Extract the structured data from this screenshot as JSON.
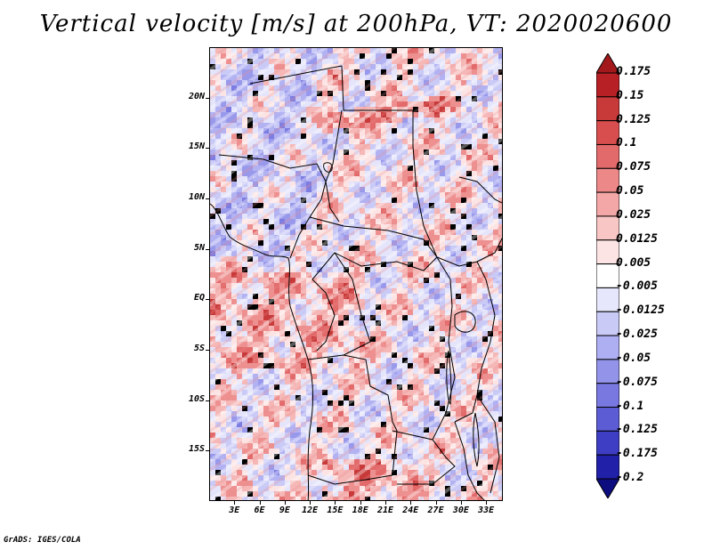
{
  "title": "Vertical velocity [m/s] at 200hPa, VT: 2020020600",
  "footer": "GrADS: IGES/COLA",
  "chart_data": {
    "type": "heatmap",
    "title": "Vertical velocity [m/s] at 200hPa, VT: 2020020600",
    "variable": "Vertical velocity",
    "units": "m/s",
    "level": "200hPa",
    "valid_time": "2020020600",
    "lat_range": [
      -20,
      25
    ],
    "lon_range": [
      0,
      35
    ],
    "lat_ticks": [
      "20N",
      "15N",
      "10N",
      "5N",
      "EQ",
      "5S",
      "10S",
      "15S"
    ],
    "lat_values": [
      20,
      15,
      10,
      5,
      0,
      -5,
      -10,
      -15
    ],
    "lon_ticks": [
      "3E",
      "6E",
      "9E",
      "12E",
      "15E",
      "18E",
      "21E",
      "24E",
      "27E",
      "30E",
      "33E"
    ],
    "lon_values": [
      3,
      6,
      9,
      12,
      15,
      18,
      21,
      24,
      27,
      30,
      33
    ],
    "colorbar": {
      "labels": [
        "0.175",
        "0.15",
        "0.125",
        "0.1",
        "0.075",
        "0.05",
        "0.025",
        "0.0125",
        "0.005",
        "-0.005",
        "-0.0125",
        "-0.025",
        "-0.05",
        "-0.075",
        "-0.1",
        "-0.125",
        "-0.175",
        "-0.2"
      ],
      "colors": [
        "#a3191b",
        "#b72025",
        "#c8393a",
        "#d84e4e",
        "#e36a6a",
        "#ec8888",
        "#f4a7a7",
        "#f9c6c6",
        "#fde4e4",
        "#ffffff",
        "#e6e6fc",
        "#cacaf7",
        "#aeaef2",
        "#9393ea",
        "#7878e0",
        "#5c5cd4",
        "#3e3ec4",
        "#2020a8",
        "#0d0d80"
      ]
    }
  }
}
